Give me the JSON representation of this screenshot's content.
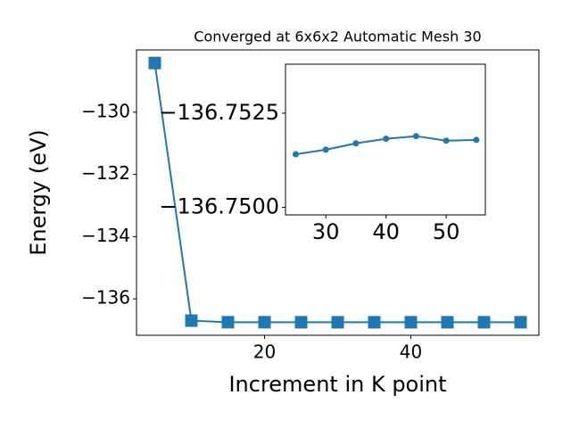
{
  "chart_data": [
    {
      "type": "line",
      "title": "Converged at 6x6x2 Automatic Mesh 30",
      "x_label": "Increment in K point",
      "y_label": "Energy (eV)",
      "x": [
        5,
        10,
        15,
        20,
        25,
        30,
        35,
        40,
        45,
        50,
        55
      ],
      "series": [
        {
          "color": "#1f77b4",
          "marker": "square",
          "values": [
            -128.42,
            -136.7,
            -136.751,
            -136.751,
            -136.75141,
            -136.75153,
            -136.7517,
            -136.75182,
            -136.75189,
            -136.75177,
            -136.75179
          ]
        }
      ],
      "xlim": [
        2.5,
        57.5
      ],
      "ylim": [
        -137.17,
        -128.0
      ],
      "xticks": [
        20,
        40
      ],
      "yticks": [
        {
          "value": -136,
          "label": "−136"
        },
        {
          "value": -134,
          "label": "−134"
        },
        {
          "value": -132,
          "label": "−132"
        },
        {
          "value": -130,
          "label": "−130"
        }
      ]
    },
    {
      "type": "line",
      "x": [
        25,
        30,
        35,
        40,
        45,
        50,
        55
      ],
      "series": [
        {
          "color": "#1f77b4",
          "marker": "circle",
          "values": [
            -136.75141,
            -136.75153,
            -136.7517,
            -136.75182,
            -136.75189,
            -136.75177,
            -136.75179
          ]
        }
      ],
      "xlim": [
        23.3,
        56.5
      ],
      "ylim": [
        -136.7498,
        -136.7538
      ],
      "xticks": [
        30,
        40,
        50
      ],
      "yticks": [
        {
          "value": -136.75,
          "label": "−136.7500"
        },
        {
          "value": -136.7525,
          "label": "−136.7525"
        }
      ]
    }
  ]
}
